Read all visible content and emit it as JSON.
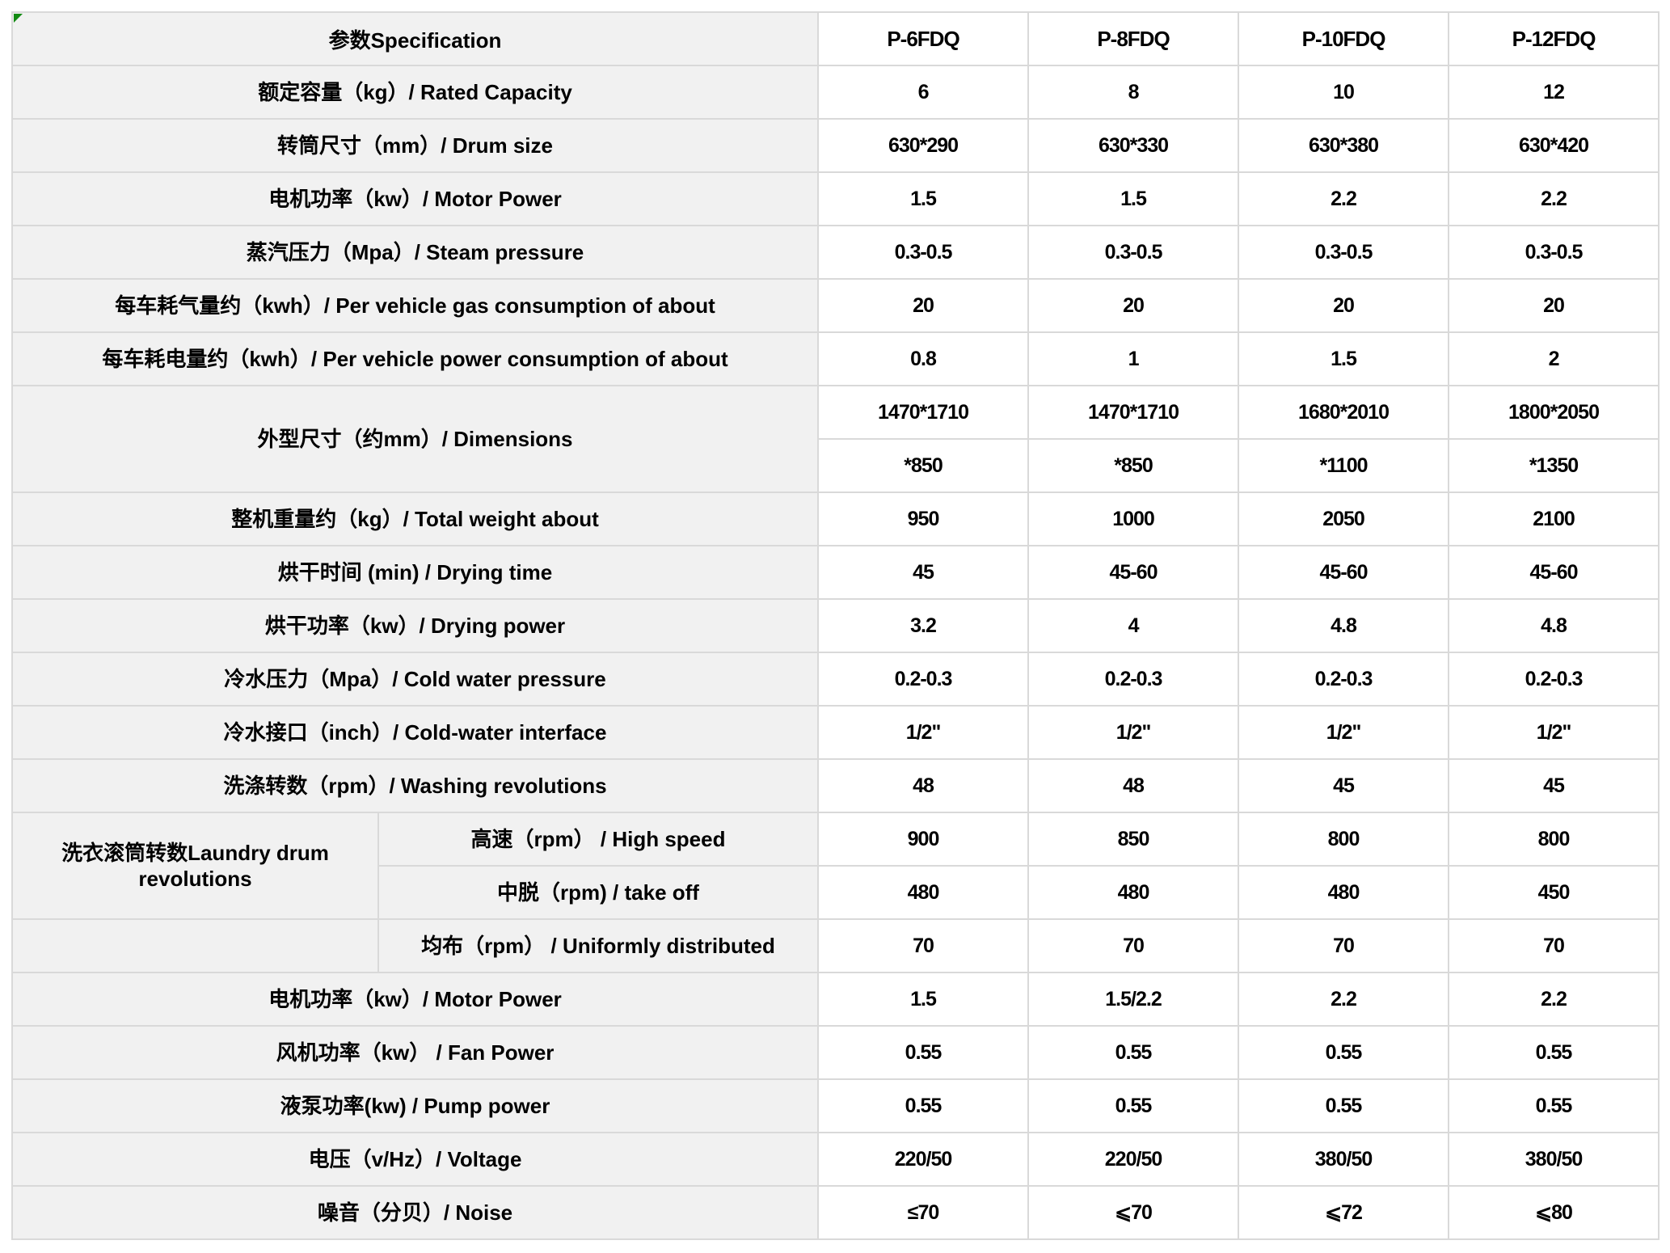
{
  "table": {
    "header": {
      "spec": "参数Specification",
      "models": [
        "P-6FDQ",
        "P-8FDQ",
        "P-10FDQ",
        "P-12FDQ"
      ]
    },
    "rows": {
      "rated_capacity": {
        "label": "额定容量（kg）/ Rated Capacity",
        "values": [
          "6",
          "8",
          "10",
          "12"
        ]
      },
      "drum_size": {
        "label": "转筒尺寸（mm）/ Drum size",
        "values": [
          "630*290",
          "630*330",
          "630*380",
          "630*420"
        ]
      },
      "motor_power": {
        "label": "电机功率（kw）/ Motor Power",
        "values": [
          "1.5",
          "1.5",
          "2.2",
          "2.2"
        ]
      },
      "steam_pressure": {
        "label": "蒸汽压力（Mpa）/ Steam pressure",
        "values": [
          "0.3-0.5",
          "0.3-0.5",
          "0.3-0.5",
          "0.3-0.5"
        ]
      },
      "gas_consumption": {
        "label": "每车耗气量约（kwh）/ Per vehicle gas consumption of about",
        "values": [
          "20",
          "20",
          "20",
          "20"
        ]
      },
      "power_consumption": {
        "label": "每车耗电量约（kwh）/ Per vehicle power consumption of about",
        "values": [
          "0.8",
          "1",
          "1.5",
          "2"
        ]
      },
      "dimensions": {
        "label": "外型尺寸（约mm）/ Dimensions",
        "line1": [
          "1470*1710",
          "1470*1710",
          "1680*2010",
          "1800*2050"
        ],
        "line2": [
          "*850",
          "*850",
          "*1100",
          "*1350"
        ]
      },
      "total_weight": {
        "label": "整机重量约（kg）/ Total weight about",
        "values": [
          "950",
          "1000",
          "2050",
          "2100"
        ]
      },
      "drying_time": {
        "label": "烘干时间 (min) / Drying time",
        "values": [
          "45",
          "45-60",
          "45-60",
          "45-60"
        ]
      },
      "drying_power": {
        "label": "烘干功率（kw）/ Drying power",
        "values": [
          "3.2",
          "4",
          "4.8",
          "4.8"
        ]
      },
      "cold_water_pressure": {
        "label": "冷水压力（Mpa）/ Cold water pressure",
        "values": [
          "0.2-0.3",
          "0.2-0.3",
          "0.2-0.3",
          "0.2-0.3"
        ]
      },
      "cold_water_interface": {
        "label": "冷水接口（inch）/ Cold-water interface",
        "values": [
          "1/2\"",
          "1/2\"",
          "1/2\"",
          "1/2\""
        ]
      },
      "washing_revolutions": {
        "label": "洗涤转数（rpm）/ Washing revolutions",
        "values": [
          "48",
          "48",
          "45",
          "45"
        ]
      },
      "drum_revolutions": {
        "group_label": "洗衣滚筒转数Laundry drum revolutions",
        "high_speed": {
          "label": "高速（rpm） / High speed",
          "values": [
            "900",
            "850",
            "800",
            "800"
          ]
        },
        "take_off": {
          "label": "中脱（rpm) / take off",
          "values": [
            "480",
            "480",
            "480",
            "450"
          ]
        },
        "uniform": {
          "label": "均布（rpm） / Uniformly distributed",
          "values": [
            "70",
            "70",
            "70",
            "70"
          ]
        }
      },
      "motor_power_2": {
        "label": "电机功率（kw）/ Motor Power",
        "values": [
          "1.5",
          "1.5/2.2",
          "2.2",
          "2.2"
        ]
      },
      "fan_power": {
        "label": "风机功率（kw） / Fan Power",
        "values": [
          "0.55",
          "0.55",
          "0.55",
          "0.55"
        ]
      },
      "pump_power": {
        "label": "液泵功率(kw) / Pump power",
        "values": [
          "0.55",
          "0.55",
          "0.55",
          "0.55"
        ]
      },
      "voltage": {
        "label": "电压（v/Hz）/ Voltage",
        "values": [
          "220/50",
          "220/50",
          "380/50",
          "380/50"
        ]
      },
      "noise": {
        "label": "噪音（分贝）/ Noise",
        "values": [
          "≤70",
          "⩽70",
          "⩽72",
          "⩽80"
        ]
      }
    }
  }
}
